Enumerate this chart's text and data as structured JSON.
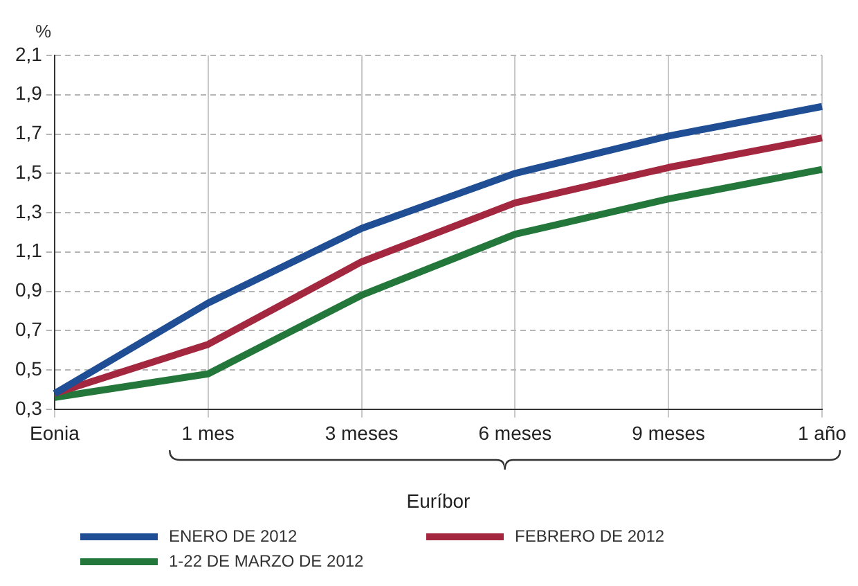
{
  "chart_data": {
    "type": "line",
    "ylabel": "%",
    "xlabel": "Euríbor",
    "categories": [
      "Eonia",
      "1 mes",
      "3 meses",
      "6 meses",
      "9 meses",
      "1 año"
    ],
    "series": [
      {
        "name": "ENERO DE 2012",
        "color": "#1f4e94",
        "values": [
          0.38,
          0.84,
          1.22,
          1.5,
          1.69,
          1.84
        ]
      },
      {
        "name": "FEBRERO DE 2012",
        "color": "#a3283f",
        "values": [
          0.38,
          0.63,
          1.05,
          1.35,
          1.53,
          1.68
        ]
      },
      {
        "name": "1-22 DE MARZO DE 2012",
        "color": "#24773a",
        "values": [
          0.36,
          0.48,
          0.88,
          1.19,
          1.37,
          1.52
        ]
      }
    ],
    "ylim": [
      0.3,
      2.1
    ],
    "yticks": [
      {
        "value": 0.3,
        "label": "0,3"
      },
      {
        "value": 0.5,
        "label": "0,5"
      },
      {
        "value": 0.7,
        "label": "0,7"
      },
      {
        "value": 0.9,
        "label": "0,9"
      },
      {
        "value": 1.1,
        "label": "1,1"
      },
      {
        "value": 1.3,
        "label": "1,3"
      },
      {
        "value": 1.5,
        "label": "1,5"
      },
      {
        "value": 1.7,
        "label": "1,7"
      },
      {
        "value": 1.9,
        "label": "1,9"
      },
      {
        "value": 2.1,
        "label": "2,1"
      }
    ],
    "grid": true,
    "legend": "bottom",
    "marker": "none",
    "line_style": "solid"
  }
}
